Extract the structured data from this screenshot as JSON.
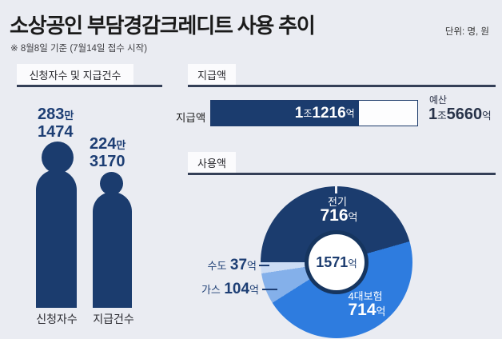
{
  "meta": {
    "title": "소상공인 부담경감크레디트 사용 추이",
    "unit_note": "단위: 명, 원",
    "date_note": "※ 8월8일 기준 (7월14일 접수 시작)"
  },
  "colors": {
    "background": "#eaecf2",
    "navy": "#1b3c6e",
    "medium_blue": "#2e7cdf",
    "light_blue": "#84b0ea",
    "pale_blue": "#cbdcf5",
    "ring_navy": "#16355f",
    "underline": "#343f57",
    "number_text": "#1d3e74"
  },
  "panel_counts": {
    "header": "신청자수 및 지급건수",
    "figures": [
      {
        "top_num": "283",
        "top_suffix": "만",
        "bottom_num": "1474",
        "label": "신청자수"
      },
      {
        "top_num": "224",
        "top_suffix": "만",
        "bottom_num": "3170",
        "label": "지급건수"
      }
    ]
  },
  "panel_paid": {
    "header": "지급액",
    "bar_label": "지급액",
    "paid_num1": "1",
    "paid_unit1": "조",
    "paid_num2": "1216",
    "paid_unit2": "억",
    "budget_label": "예산",
    "budget_num1": "1",
    "budget_unit1": "조",
    "budget_num2": "5660",
    "budget_unit2": "억"
  },
  "panel_usage": {
    "header": "사용액",
    "center_num": "1571",
    "center_unit": "억",
    "electric_name": "전기",
    "electric_num": "716",
    "electric_unit": "억",
    "insurance_name": "4대보험",
    "insurance_num": "714",
    "insurance_unit": "억",
    "water_name": "수도",
    "water_num": "37",
    "water_unit": "억",
    "gas_name": "가스",
    "gas_num": "104",
    "gas_unit": "억"
  },
  "chart_data": [
    {
      "type": "bar",
      "style": "person-pictogram",
      "title": "신청자수 및 지급건수",
      "categories": [
        "신청자수",
        "지급건수"
      ],
      "values": [
        2831474,
        2243170
      ],
      "value_labels": [
        "283만1474",
        "224만3170"
      ],
      "unit": "명"
    },
    {
      "type": "bar",
      "style": "horizontal-progress",
      "title": "지급액",
      "categories": [
        "지급액"
      ],
      "values": [
        11216
      ],
      "max": 15660,
      "value_labels": [
        "1조1216억"
      ],
      "annotations": [
        "예산 1조5660억"
      ],
      "unit": "원"
    },
    {
      "type": "pie",
      "style": "donut",
      "title": "사용액",
      "categories": [
        "전기",
        "4대보험",
        "가스",
        "수도"
      ],
      "values": [
        716,
        714,
        104,
        37
      ],
      "colors": [
        "#1b3c6e",
        "#2e7cdf",
        "#84b0ea",
        "#cbdcf5"
      ],
      "total": 1571,
      "center_label": "1571억",
      "start_angle_deg": 270,
      "unit": "억 원"
    }
  ]
}
